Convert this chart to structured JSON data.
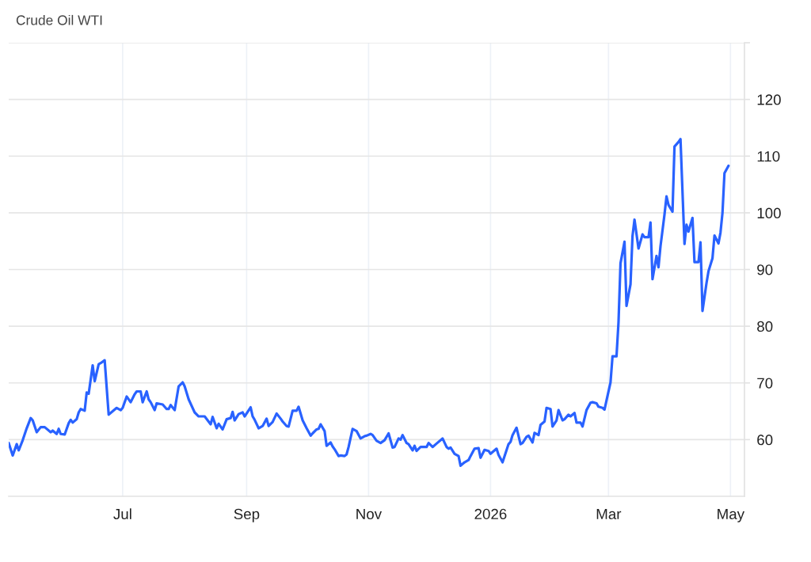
{
  "chart_data": {
    "type": "line",
    "title": "Crude Oil WTI",
    "x": [
      "2025-05-05",
      "2025-05-07",
      "2025-05-09",
      "2025-05-10",
      "2025-05-12",
      "2025-05-14",
      "2025-05-16",
      "2025-05-17",
      "2025-05-19",
      "2025-05-21",
      "2025-05-23",
      "2025-05-26",
      "2025-05-27",
      "2025-05-29",
      "2025-05-30",
      "2025-05-31",
      "2025-06-02",
      "2025-06-04",
      "2025-06-05",
      "2025-06-06",
      "2025-06-08",
      "2025-06-09",
      "2025-06-10",
      "2025-06-12",
      "2025-06-13",
      "2025-06-14",
      "2025-06-16",
      "2025-06-17",
      "2025-06-19",
      "2025-06-20",
      "2025-06-22",
      "2025-06-24",
      "2025-06-26",
      "2025-06-28",
      "2025-06-30",
      "2025-07-01",
      "2025-07-03",
      "2025-07-05",
      "2025-07-07",
      "2025-07-08",
      "2025-07-10",
      "2025-07-11",
      "2025-07-13",
      "2025-07-14",
      "2025-07-15",
      "2025-07-17",
      "2025-07-18",
      "2025-07-21",
      "2025-07-23",
      "2025-07-24",
      "2025-07-25",
      "2025-07-27",
      "2025-07-29",
      "2025-07-31",
      "2025-08-01",
      "2025-08-03",
      "2025-08-06",
      "2025-08-08",
      "2025-08-11",
      "2025-08-14",
      "2025-08-15",
      "2025-08-17",
      "2025-08-18",
      "2025-08-20",
      "2025-08-22",
      "2025-08-24",
      "2025-08-25",
      "2025-08-26",
      "2025-08-28",
      "2025-08-30",
      "2025-08-31",
      "2025-09-03",
      "2025-09-04",
      "2025-09-05",
      "2025-09-07",
      "2025-09-09",
      "2025-09-11",
      "2025-09-12",
      "2025-09-14",
      "2025-09-16",
      "2025-09-18",
      "2025-09-19",
      "2025-09-21",
      "2025-09-22",
      "2025-09-24",
      "2025-09-26",
      "2025-09-27",
      "2025-09-29",
      "2025-10-01",
      "2025-10-03",
      "2025-10-04",
      "2025-10-06",
      "2025-10-07",
      "2025-10-08",
      "2025-10-10",
      "2025-10-11",
      "2025-10-13",
      "2025-10-14",
      "2025-10-15",
      "2025-10-17",
      "2025-10-18",
      "2025-10-20",
      "2025-10-21",
      "2025-10-22",
      "2025-10-24",
      "2025-10-26",
      "2025-10-28",
      "2025-10-30",
      "2025-10-31",
      "2025-11-02",
      "2025-11-03",
      "2025-11-05",
      "2025-11-07",
      "2025-11-09",
      "2025-11-11",
      "2025-11-13",
      "2025-11-14",
      "2025-11-16",
      "2025-11-17",
      "2025-11-18",
      "2025-11-20",
      "2025-11-21",
      "2025-11-23",
      "2025-11-24",
      "2025-11-25",
      "2025-11-27",
      "2025-11-30",
      "2025-12-01",
      "2025-12-03",
      "2025-12-05",
      "2025-12-08",
      "2025-12-10",
      "2025-12-11",
      "2025-12-12",
      "2025-12-14",
      "2025-12-16",
      "2025-12-17",
      "2025-12-19",
      "2025-12-21",
      "2025-12-22",
      "2025-12-24",
      "2025-12-26",
      "2025-12-27",
      "2025-12-29",
      "2025-12-31",
      "2026-01-01",
      "2026-01-04",
      "2026-01-05",
      "2026-01-07",
      "2026-01-10",
      "2026-01-11",
      "2026-01-12",
      "2026-01-14",
      "2026-01-16",
      "2026-01-17",
      "2026-01-19",
      "2026-01-20",
      "2026-01-22",
      "2026-01-23",
      "2026-01-25",
      "2026-01-26",
      "2026-01-28",
      "2026-01-29",
      "2026-01-31",
      "2026-02-01",
      "2026-02-03",
      "2026-02-04",
      "2026-02-06",
      "2026-02-07",
      "2026-02-09",
      "2026-02-10",
      "2026-02-12",
      "2026-02-13",
      "2026-02-15",
      "2026-02-16",
      "2026-02-18",
      "2026-02-20",
      "2026-02-21",
      "2026-02-23",
      "2026-02-24",
      "2026-02-26",
      "2026-02-27",
      "2026-02-28",
      "2026-03-02",
      "2026-03-03",
      "2026-03-05",
      "2026-03-06",
      "2026-03-07",
      "2026-03-09",
      "2026-03-10",
      "2026-03-12",
      "2026-03-13",
      "2026-03-14",
      "2026-03-16",
      "2026-03-18",
      "2026-03-19",
      "2026-03-21",
      "2026-03-22",
      "2026-03-23",
      "2026-03-25",
      "2026-03-26",
      "2026-03-27",
      "2026-03-29",
      "2026-03-30",
      "2026-03-31",
      "2026-04-02",
      "2026-04-03",
      "2026-04-05",
      "2026-04-06",
      "2026-04-08",
      "2026-04-09",
      "2026-04-10",
      "2026-04-12",
      "2026-04-13",
      "2026-04-15",
      "2026-04-16",
      "2026-04-17",
      "2026-04-19",
      "2026-04-20",
      "2026-04-22",
      "2026-04-23",
      "2026-04-25",
      "2026-04-26",
      "2026-04-27",
      "2026-04-28",
      "2026-04-30"
    ],
    "series": [
      {
        "color": "#2962ff",
        "values": [
          59.4,
          57.2,
          59.2,
          58.1,
          59.9,
          62.0,
          63.8,
          63.4,
          61.3,
          62.2,
          62.2,
          61.3,
          61.6,
          61.0,
          61.9,
          61.0,
          60.9,
          62.9,
          63.5,
          63.0,
          63.6,
          64.8,
          65.4,
          65.1,
          68.3,
          68.1,
          73.1,
          70.3,
          73.3,
          73.5,
          74.0,
          64.4,
          65.0,
          65.6,
          65.2,
          65.6,
          67.6,
          66.6,
          68.0,
          68.5,
          68.5,
          66.6,
          68.5,
          67.1,
          66.6,
          65.2,
          66.4,
          66.2,
          65.4,
          65.4,
          66.1,
          65.2,
          69.4,
          70.1,
          69.4,
          67.1,
          64.8,
          64.1,
          64.1,
          62.7,
          64.0,
          62.0,
          62.8,
          61.8,
          63.6,
          63.8,
          64.9,
          63.4,
          64.5,
          64.8,
          64.1,
          65.7,
          64.1,
          63.5,
          62.0,
          62.4,
          63.7,
          62.4,
          63.1,
          64.6,
          63.7,
          63.2,
          62.4,
          62.3,
          65.1,
          65.1,
          65.8,
          63.4,
          62.0,
          60.7,
          61.1,
          61.8,
          61.9,
          62.7,
          61.5,
          58.9,
          59.5,
          58.8,
          58.3,
          57.1,
          57.2,
          57.1,
          57.4,
          58.7,
          61.9,
          61.5,
          60.2,
          60.6,
          60.7,
          61.0,
          60.8,
          59.8,
          59.4,
          59.9,
          61.1,
          58.6,
          58.7,
          60.2,
          60.0,
          60.8,
          59.4,
          59.2,
          58.1,
          58.9,
          58.0,
          58.7,
          58.7,
          59.4,
          58.7,
          59.3,
          60.2,
          58.7,
          58.4,
          58.6,
          57.5,
          57.1,
          55.4,
          56.0,
          56.4,
          57.1,
          58.4,
          58.5,
          56.8,
          58.2,
          58.0,
          57.5,
          58.4,
          57.3,
          56.0,
          59.2,
          59.6,
          60.8,
          62.1,
          59.2,
          59.4,
          60.5,
          60.7,
          59.5,
          61.2,
          60.8,
          62.6,
          63.2,
          65.6,
          65.4,
          62.3,
          63.4,
          65.2,
          63.4,
          63.6,
          64.4,
          64.1,
          64.7,
          63.0,
          63.0,
          62.3,
          65.2,
          66.5,
          66.6,
          66.4,
          65.8,
          65.6,
          65.3,
          66.9,
          70.1,
          74.7,
          74.7,
          80.7,
          91.1,
          94.9,
          83.6,
          87.4,
          95.9,
          98.8,
          93.7,
          96.2,
          95.7,
          95.7,
          98.3,
          88.3,
          92.4,
          90.4,
          94.1,
          99.7,
          102.9,
          101.4,
          100.2,
          111.7,
          112.5,
          113.0,
          94.5,
          97.9,
          96.7,
          99.1,
          91.3,
          91.3,
          94.8,
          82.7,
          87.6,
          89.7,
          92.0,
          96.0,
          94.6,
          96.5,
          100.0,
          107.0,
          108.3
        ]
      }
    ],
    "xlim": [
      "2025-05-05",
      "2026-05-08"
    ],
    "xticks": [
      {
        "value": "2025-07-01",
        "label": "Jul"
      },
      {
        "value": "2025-09-01",
        "label": "Sep"
      },
      {
        "value": "2025-11-01",
        "label": "Nov"
      },
      {
        "value": "2026-01-01",
        "label": "2026"
      },
      {
        "value": "2026-03-01",
        "label": "Mar"
      },
      {
        "value": "2026-05-01",
        "label": "May"
      }
    ],
    "ylim": [
      50,
      130
    ],
    "yticks": [
      60,
      70,
      80,
      90,
      100,
      110,
      120,
      {
        "value": 130,
        "label": null
      }
    ],
    "grid": true,
    "line_style": "solid"
  }
}
